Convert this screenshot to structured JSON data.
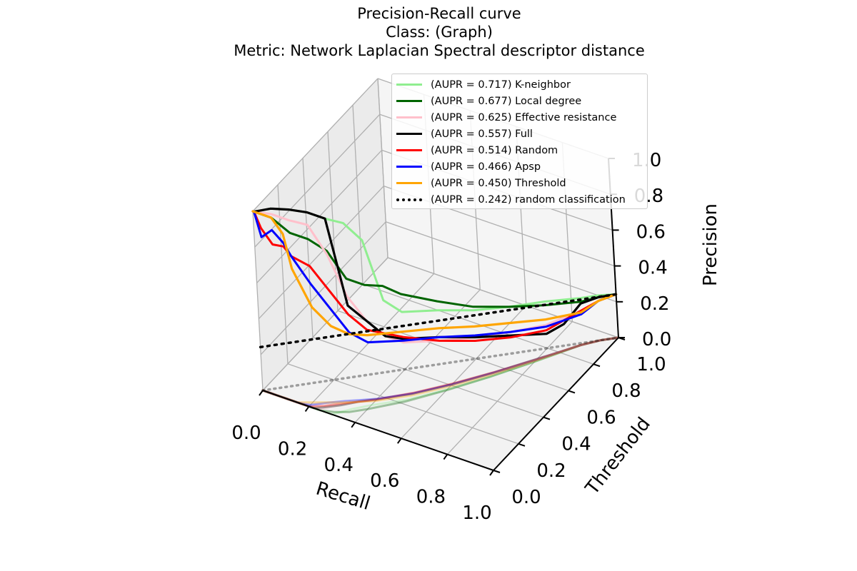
{
  "titles": {
    "line1": "Precision-Recall curve",
    "line2": "Class: (Graph)",
    "line3": "Metric: Network Laplacian Spectral descriptor distance"
  },
  "chart_data": {
    "type": "line",
    "projection": "3d",
    "xlabel": "Recall",
    "ylabel": "Threshold",
    "zlabel": "Precision",
    "xlim": [
      0,
      1
    ],
    "ylim": [
      0,
      1
    ],
    "zlim": [
      0,
      1
    ],
    "xticks": [
      "0.0",
      "0.2",
      "0.4",
      "0.6",
      "0.8",
      "1.0"
    ],
    "yticks": [
      "0.0",
      "0.2",
      "0.4",
      "0.6",
      "0.8",
      "1.0"
    ],
    "zticks": [
      "0.0",
      "0.2",
      "0.4",
      "0.6",
      "0.8",
      "1.0"
    ],
    "grid": true,
    "legend_position": "top-right",
    "shadow_projection": "threshold floor (precision = 0), translucent",
    "series": [
      {
        "name": "(AUPR = 0.717) K-neighbor",
        "color": "#90ee90",
        "width": 3,
        "dash": "solid",
        "recall": [
          0.0,
          0.005,
          0.05,
          0.1,
          0.15,
          0.2,
          0.25,
          0.3,
          0.35,
          0.4,
          0.5,
          0.6,
          0.7,
          0.8,
          0.9,
          0.95,
          1.0
        ],
        "threshold": [
          0.0,
          0.0,
          0.05,
          0.1,
          0.15,
          0.2,
          0.25,
          0.3,
          0.35,
          0.4,
          0.5,
          0.6,
          0.7,
          0.8,
          0.9,
          0.95,
          1.0
        ],
        "precision": [
          1.0,
          1.0,
          1.0,
          0.98,
          0.95,
          0.9,
          0.86,
          0.75,
          0.4,
          0.32,
          0.3,
          0.27,
          0.26,
          0.26,
          0.25,
          0.25,
          0.242
        ]
      },
      {
        "name": "(AUPR = 0.677) Local degree",
        "color": "#006400",
        "width": 3,
        "dash": "solid",
        "recall": [
          0.0,
          0.005,
          0.05,
          0.1,
          0.15,
          0.2,
          0.25,
          0.3,
          0.35,
          0.4,
          0.5,
          0.6,
          0.7,
          0.8,
          0.9,
          0.95,
          1.0
        ],
        "threshold": [
          0.0,
          0.0,
          0.05,
          0.1,
          0.15,
          0.2,
          0.25,
          0.3,
          0.35,
          0.4,
          0.5,
          0.6,
          0.7,
          0.8,
          0.9,
          0.95,
          1.0
        ],
        "precision": [
          1.0,
          1.0,
          0.95,
          0.85,
          0.8,
          0.72,
          0.55,
          0.5,
          0.48,
          0.42,
          0.35,
          0.29,
          0.26,
          0.24,
          0.23,
          0.24,
          0.242
        ]
      },
      {
        "name": "(AUPR = 0.625) Effective resistance",
        "color": "#ffc0cb",
        "width": 3,
        "dash": "solid",
        "recall": [
          0.0,
          0.005,
          0.05,
          0.1,
          0.15,
          0.2,
          0.25,
          0.3,
          0.35,
          0.4,
          0.5,
          0.6,
          0.7,
          0.8,
          0.9,
          0.95,
          1.0
        ],
        "threshold": [
          0.0,
          0.0,
          0.05,
          0.1,
          0.15,
          0.2,
          0.25,
          0.3,
          0.35,
          0.4,
          0.5,
          0.6,
          0.7,
          0.8,
          0.9,
          0.95,
          1.0
        ],
        "precision": [
          1.0,
          1.0,
          0.97,
          0.92,
          0.88,
          0.7,
          0.45,
          0.3,
          0.2,
          0.15,
          0.13,
          0.12,
          0.12,
          0.13,
          0.18,
          0.22,
          0.242
        ]
      },
      {
        "name": "(AUPR = 0.557) Full",
        "color": "#000000",
        "width": 3.2,
        "dash": "solid",
        "recall": [
          0.0,
          0.005,
          0.05,
          0.1,
          0.15,
          0.2,
          0.22,
          0.25,
          0.3,
          0.35,
          0.4,
          0.5,
          0.6,
          0.7,
          0.8,
          0.85,
          0.9,
          0.95,
          1.0
        ],
        "threshold": [
          0.0,
          0.0,
          0.05,
          0.1,
          0.15,
          0.2,
          0.22,
          0.25,
          0.3,
          0.35,
          0.4,
          0.5,
          0.6,
          0.7,
          0.8,
          0.85,
          0.9,
          0.95,
          1.0
        ],
        "precision": [
          1.0,
          1.0,
          1.0,
          0.98,
          0.95,
          0.9,
          0.7,
          0.4,
          0.3,
          0.2,
          0.17,
          0.15,
          0.12,
          0.1,
          0.08,
          0.12,
          0.22,
          0.24,
          0.242
        ]
      },
      {
        "name": "(AUPR = 0.514) Random",
        "color": "#ff0000",
        "width": 3,
        "dash": "solid",
        "recall": [
          0.0,
          0.005,
          0.02,
          0.05,
          0.08,
          0.1,
          0.15,
          0.2,
          0.25,
          0.3,
          0.4,
          0.5,
          0.6,
          0.7,
          0.8,
          0.9,
          0.95,
          1.0
        ],
        "threshold": [
          0.0,
          0.0,
          0.02,
          0.05,
          0.08,
          0.1,
          0.15,
          0.2,
          0.25,
          0.3,
          0.4,
          0.5,
          0.6,
          0.7,
          0.8,
          0.9,
          0.95,
          1.0
        ],
        "precision": [
          1.0,
          1.0,
          0.9,
          0.8,
          0.78,
          0.72,
          0.65,
          0.5,
          0.35,
          0.25,
          0.18,
          0.13,
          0.1,
          0.09,
          0.1,
          0.18,
          0.22,
          0.242
        ]
      },
      {
        "name": "(AUPR = 0.466) Apsp",
        "color": "#0000ff",
        "width": 3,
        "dash": "solid",
        "recall": [
          0.0,
          0.005,
          0.02,
          0.05,
          0.08,
          0.1,
          0.15,
          0.2,
          0.25,
          0.3,
          0.4,
          0.5,
          0.6,
          0.7,
          0.8,
          0.9,
          0.95,
          1.0
        ],
        "threshold": [
          0.0,
          0.0,
          0.02,
          0.05,
          0.08,
          0.1,
          0.15,
          0.2,
          0.25,
          0.3,
          0.4,
          0.5,
          0.6,
          0.7,
          0.8,
          0.9,
          0.95,
          1.0
        ],
        "precision": [
          1.0,
          1.0,
          0.85,
          0.88,
          0.8,
          0.72,
          0.55,
          0.4,
          0.25,
          0.18,
          0.16,
          0.15,
          0.13,
          0.12,
          0.12,
          0.16,
          0.22,
          0.242
        ]
      },
      {
        "name": "(AUPR = 0.450) Threshold",
        "color": "#ffa500",
        "width": 3.2,
        "dash": "solid",
        "recall": [
          0.0,
          0.005,
          0.02,
          0.05,
          0.08,
          0.1,
          0.15,
          0.2,
          0.25,
          0.3,
          0.4,
          0.5,
          0.6,
          0.7,
          0.8,
          0.9,
          0.95,
          1.0
        ],
        "threshold": [
          0.0,
          0.0,
          0.02,
          0.05,
          0.08,
          0.1,
          0.15,
          0.2,
          0.25,
          0.3,
          0.4,
          0.5,
          0.6,
          0.7,
          0.8,
          0.9,
          0.95,
          1.0
        ],
        "precision": [
          1.0,
          1.0,
          0.98,
          0.95,
          0.85,
          0.65,
          0.42,
          0.3,
          0.24,
          0.22,
          0.21,
          0.2,
          0.18,
          0.17,
          0.16,
          0.17,
          0.22,
          0.242
        ]
      },
      {
        "name": "(AUPR = 0.242) random classification",
        "color": "#000000",
        "width": 3.5,
        "dash": "dotted",
        "recall": [
          0.0,
          1.0
        ],
        "threshold": [
          0.0,
          1.0
        ],
        "precision": [
          0.242,
          0.242
        ]
      }
    ]
  }
}
